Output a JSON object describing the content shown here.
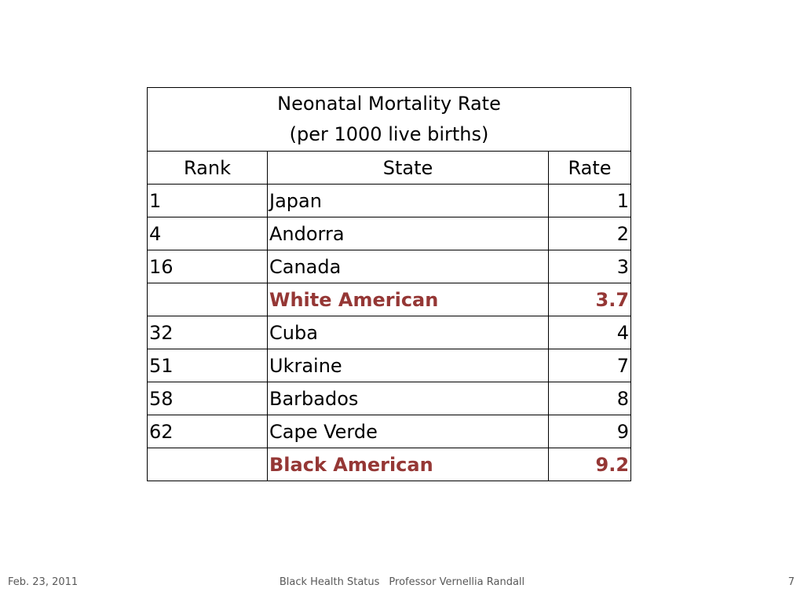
{
  "table": {
    "title_line1": "Neonatal Mortality Rate",
    "title_line2": "(per 1000 live births)",
    "headers": {
      "rank": "Rank",
      "state": "State",
      "rate": "Rate"
    },
    "rows": [
      {
        "rank": "1",
        "state": "Japan",
        "rate": "1"
      },
      {
        "rank": "4",
        "state": "Andorra",
        "rate": "2"
      },
      {
        "rank": "16",
        "state": "Canada",
        "rate": "3"
      },
      {
        "rank": "",
        "state": "White American",
        "rate": "3.7"
      },
      {
        "rank": "32",
        "state": "Cuba",
        "rate": "4"
      },
      {
        "rank": "51",
        "state": "Ukraine",
        "rate": "7"
      },
      {
        "rank": "58",
        "state": "Barbados",
        "rate": "8"
      },
      {
        "rank": "62",
        "state": "Cape Verde",
        "rate": "9"
      },
      {
        "rank": "",
        "state": "Black American",
        "rate": "9.2"
      }
    ],
    "highlight_color": "#953735"
  },
  "footer": {
    "date": "Feb. 23, 2011",
    "title": "Black Health Status",
    "author": "Professor Vernellia Randall",
    "page": "7"
  }
}
